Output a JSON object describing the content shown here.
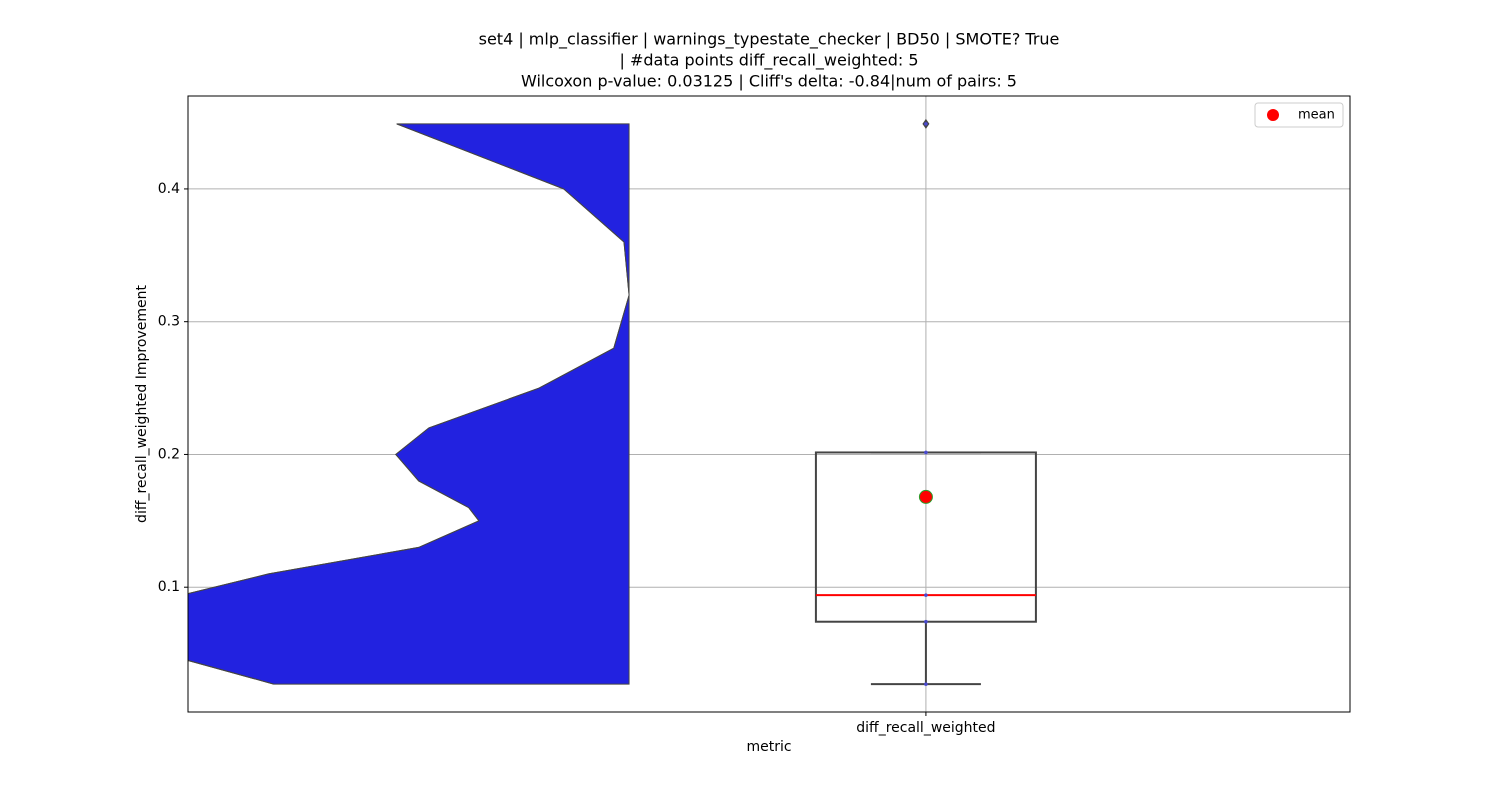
{
  "chart_data": {
    "type": "violin-box",
    "title": [
      "set4 | mlp_classifier | warnings_typestate_checker | BD50 | SMOTE? True",
      "| #data points diff_recall_weighted: 5",
      "Wilcoxon p-value: 0.03125 | Cliff's delta: -0.84|num of pairs: 5"
    ],
    "ylabel": "diff_recall_weighted Improvement",
    "xlabel": "metric",
    "categories": [
      "diff_recall_weighted"
    ],
    "xlim": [
      -0.87,
      0.5
    ],
    "ylim": [
      0.006,
      0.47
    ],
    "yticks": [
      0.1,
      0.2,
      0.3,
      0.4
    ],
    "grid": true,
    "legend": {
      "label": "mean",
      "loc": "upper right"
    },
    "violin": {
      "x": -0.35,
      "color": "#2222e0",
      "y": [
        0.449,
        0.4,
        0.36,
        0.32,
        0.28,
        0.25,
        0.22,
        0.2,
        0.18,
        0.16,
        0.15,
        0.13,
        0.11,
        0.095,
        0.08,
        0.06,
        0.045,
        0.027
      ],
      "width": [
        0.274,
        0.077,
        0.006,
        0,
        0.018,
        0.106,
        0.236,
        0.275,
        0.248,
        0.189,
        0.177,
        0.248,
        0.425,
        0.521,
        0.578,
        0.566,
        0.521,
        0.419
      ]
    },
    "box": {
      "whislo": 0.027,
      "q1": 0.074,
      "median": 0.094,
      "q3": 0.2015,
      "whishi": 0.2015,
      "fliers": [
        0.449
      ],
      "mean": 0.168,
      "color": "#444444",
      "median_color": "#ff0000",
      "mean_color": "#ff0000",
      "mean_edge": "#2a9d2a"
    },
    "points": [
      0.027,
      0.074,
      0.094,
      0.2015,
      0.449
    ],
    "points_color": "#4a4ad0"
  }
}
